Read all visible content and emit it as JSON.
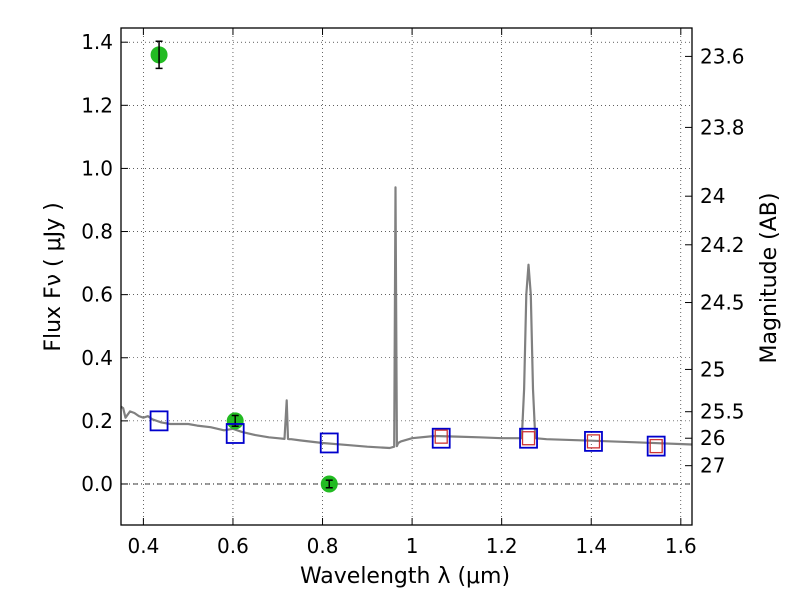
{
  "chart_data": {
    "type": "scatter",
    "xlabel": "Wavelength  λ (μm)",
    "ylabel": "Flux  Fν  ( μJy )",
    "ylabel_right": "Magnitude (AB)",
    "xlim": [
      0.35,
      1.625
    ],
    "ylim": [
      -0.13,
      1.445
    ],
    "x_ticks": [
      0.4,
      0.6,
      0.8,
      1.0,
      1.2,
      1.4,
      1.6
    ],
    "x_tick_labels": [
      "0.4",
      "0.6",
      "0.8",
      "1",
      "1.2",
      "1.4",
      "1.6"
    ],
    "y_ticks": [
      0.0,
      0.2,
      0.4,
      0.6,
      0.8,
      1.0,
      1.2,
      1.4
    ],
    "y_tick_labels": [
      "0.0",
      "0.2",
      "0.4",
      "0.6",
      "0.8",
      "1.0",
      "1.2",
      "1.4"
    ],
    "mag_ticks": [
      {
        "flux": 1.355,
        "label": "23.6"
      },
      {
        "flux": 1.13,
        "label": "23.8"
      },
      {
        "flux": 0.912,
        "label": "24"
      },
      {
        "flux": 0.758,
        "label": "24.2"
      },
      {
        "flux": 0.575,
        "label": "24.5"
      },
      {
        "flux": 0.363,
        "label": "25"
      },
      {
        "flux": 0.229,
        "label": "25.5"
      },
      {
        "flux": 0.145,
        "label": "26"
      },
      {
        "flux": 0.058,
        "label": "27"
      }
    ],
    "grid": true,
    "zero_line": 0,
    "colors": {
      "spectrum": "#808080",
      "observed": "#22bb22",
      "model_blue": "#0000cc",
      "model_red": "#cc3333"
    },
    "spectrum": {
      "x": [
        0.35,
        0.355,
        0.36,
        0.37,
        0.38,
        0.39,
        0.4,
        0.41,
        0.42,
        0.43,
        0.44,
        0.46,
        0.48,
        0.5,
        0.52,
        0.55,
        0.58,
        0.6,
        0.62,
        0.65,
        0.68,
        0.7,
        0.715,
        0.72,
        0.723,
        0.726,
        0.73,
        0.75,
        0.8,
        0.85,
        0.9,
        0.95,
        0.96,
        0.963,
        0.966,
        0.969,
        0.975,
        1.0,
        1.05,
        1.1,
        1.15,
        1.2,
        1.245,
        1.25,
        1.255,
        1.26,
        1.265,
        1.27,
        1.275,
        1.3,
        1.4,
        1.5,
        1.625
      ],
      "y": [
        0.245,
        0.24,
        0.21,
        0.23,
        0.225,
        0.215,
        0.21,
        0.215,
        0.205,
        0.2,
        0.195,
        0.19,
        0.19,
        0.19,
        0.185,
        0.18,
        0.17,
        0.175,
        0.165,
        0.155,
        0.148,
        0.145,
        0.143,
        0.265,
        0.143,
        0.142,
        0.142,
        0.138,
        0.13,
        0.124,
        0.118,
        0.114,
        0.118,
        0.94,
        0.12,
        0.13,
        0.135,
        0.145,
        0.152,
        0.15,
        0.148,
        0.145,
        0.145,
        0.3,
        0.6,
        0.695,
        0.6,
        0.3,
        0.145,
        0.142,
        0.137,
        0.132,
        0.125
      ]
    },
    "series": [
      {
        "marker": "circle",
        "x": [
          0.435,
          0.605,
          0.815
        ],
        "y": [
          1.36,
          0.2,
          0.0
        ],
        "yerr": [
          0.043,
          0.017,
          0.012
        ]
      },
      {
        "marker": "square",
        "x": [
          0.435,
          0.605,
          0.815,
          1.065,
          1.26,
          1.405,
          1.545
        ],
        "y": [
          0.2,
          0.16,
          0.13,
          0.145,
          0.145,
          0.135,
          0.12
        ]
      },
      {
        "marker": "square-small",
        "x": [
          1.065,
          1.26,
          1.405,
          1.545
        ],
        "y": [
          0.15,
          0.145,
          0.135,
          0.12
        ]
      }
    ]
  }
}
